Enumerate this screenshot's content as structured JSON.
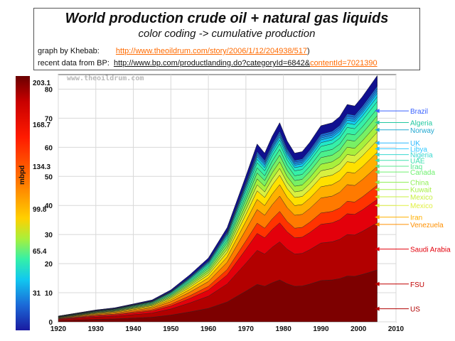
{
  "header": {
    "title": "World production crude oil + natural gas liquids",
    "subtitle": "color coding -> cumulative production",
    "credit1_prefix": "graph by Khebab:",
    "credit1_url": "http://www.theoildrum.com/story/2006/1/12/204938/517",
    "credit1_suffix": ")",
    "credit2_prefix": "recent data from BP:",
    "credit2_url_a": "http://www.bp.com/productlanding.do?categoryId=6842&",
    "credit2_url_b": "contentId=7021390"
  },
  "colorbar": {
    "unit": "mbpd",
    "labels": [
      "203.1",
      "168.7",
      "134.3",
      "99.8",
      "65.4",
      "31"
    ]
  },
  "chart_data": {
    "type": "area",
    "title": "World production crude oil + natural gas liquids",
    "subtitle": "color coding -> cumulative production",
    "watermark": "www.theoildrum.com",
    "xlabel": "",
    "ylabel": "",
    "xlim": [
      1920,
      2010
    ],
    "ylim": [
      0,
      85
    ],
    "xticks": [
      1920,
      1930,
      1940,
      1950,
      1960,
      1970,
      1980,
      1990,
      2000,
      2010
    ],
    "yticks": [
      0,
      10,
      20,
      30,
      40,
      50,
      60,
      70,
      80
    ],
    "grid": true,
    "x": [
      1920,
      1925,
      1930,
      1935,
      1940,
      1945,
      1950,
      1955,
      1960,
      1965,
      1970,
      1973,
      1975,
      1977,
      1979,
      1981,
      1983,
      1985,
      1987,
      1990,
      1993,
      1995,
      1997,
      1999,
      2001,
      2003,
      2005
    ],
    "total": [
      1.9,
      2.9,
      3.9,
      4.6,
      5.9,
      7.2,
      10.5,
      15.4,
      21.0,
      31.0,
      48.0,
      58.5,
      55.5,
      61.0,
      65.5,
      59.5,
      55.5,
      56.0,
      59.0,
      64.5,
      65.5,
      67.5,
      71.5,
      71.0,
      74.0,
      77.5,
      81.0
    ],
    "band_fractions": [
      0.22,
      0.2,
      0.1,
      0.06,
      0.08,
      0.06,
      0.05,
      0.035,
      0.035,
      0.035,
      0.03,
      0.03,
      0.02,
      0.015,
      0.01,
      0.01,
      0.015,
      0.01,
      0.01,
      0.02,
      0.015
    ],
    "band_colors": [
      "#7d0000",
      "#b20000",
      "#e3000b",
      "#ff3300",
      "#ff7a00",
      "#ffb000",
      "#ffe000",
      "#d8f040",
      "#a8f03c",
      "#78f064",
      "#4cf08c",
      "#35f0a8",
      "#22e8c8",
      "#11c8f0",
      "#1aa6f0",
      "#1b86e8",
      "#1b6ad8",
      "#1a4ec8",
      "#1a3ab8",
      "#1a26a8",
      "#101090"
    ],
    "countries": [
      {
        "name": "Brazil",
        "y": 72.5,
        "color": "#3a62ff"
      },
      {
        "name": "Algeria",
        "y": 68.5,
        "color": "#22c8a0"
      },
      {
        "name": "Norway",
        "y": 66.0,
        "color": "#22a8d0"
      },
      {
        "name": "UK",
        "y": 61.5,
        "color": "#2ab8ff"
      },
      {
        "name": "Libya",
        "y": 59.5,
        "color": "#30c8ff"
      },
      {
        "name": "Nigeria",
        "y": 57.5,
        "color": "#38d8d0"
      },
      {
        "name": "UAE",
        "y": 55.5,
        "color": "#40e0b0"
      },
      {
        "name": "Iraq",
        "y": 53.5,
        "color": "#58e890"
      },
      {
        "name": "Canada",
        "y": 51.5,
        "color": "#70f070"
      },
      {
        "name": "China",
        "y": 48.0,
        "color": "#90f058"
      },
      {
        "name": "Kuwait",
        "y": 45.5,
        "color": "#a8f048"
      },
      {
        "name": "Mexico",
        "y": 43.0,
        "color": "#c8f040"
      },
      {
        "name": "Mexico",
        "y": 40.0,
        "color": "#e0f040"
      },
      {
        "name": "Iran",
        "y": 36.0,
        "color": "#ffb000"
      },
      {
        "name": "Venezuela",
        "y": 33.5,
        "color": "#ff9000"
      },
      {
        "name": "Saudi Arabia",
        "y": 25.0,
        "color": "#e3000b"
      },
      {
        "name": "FSU",
        "y": 13.0,
        "color": "#c00000"
      },
      {
        "name": "US",
        "y": 4.5,
        "color": "#b00000"
      }
    ]
  }
}
